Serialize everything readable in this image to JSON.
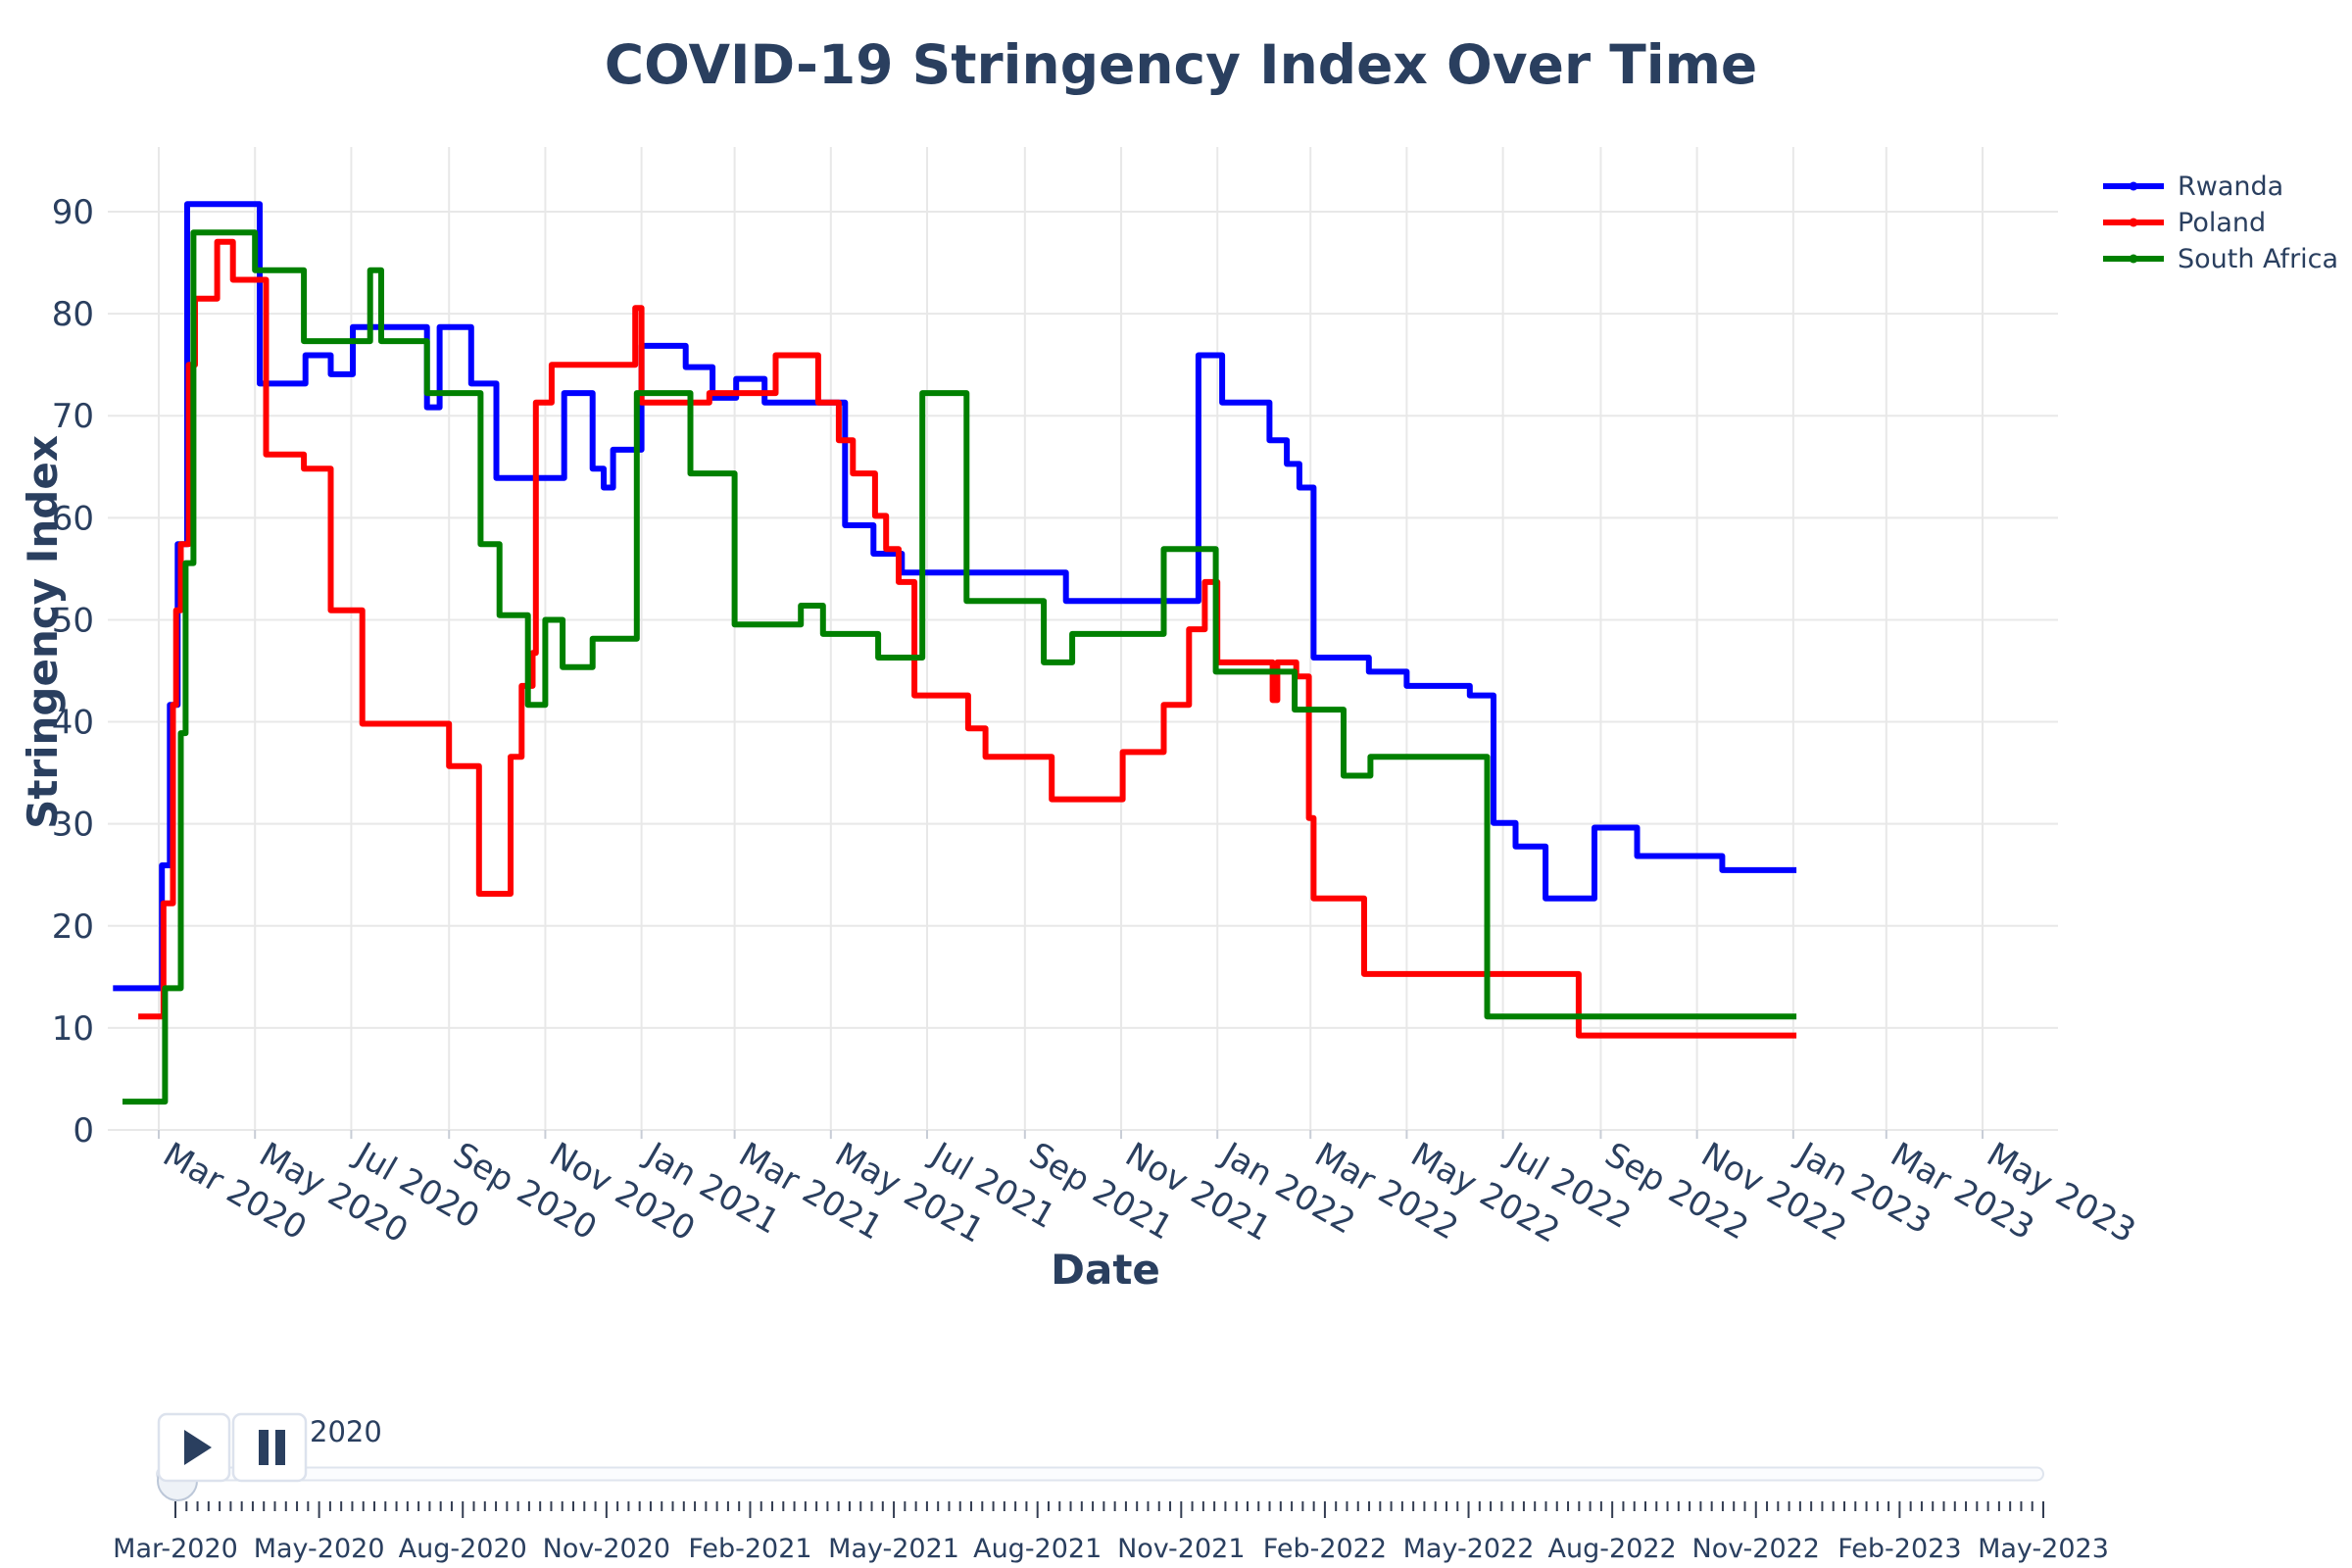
{
  "title": "COVID-19 Stringency Index Over Time",
  "axes": {
    "x_title": "Date",
    "y_title": "Stringency Index",
    "y_ticks": [
      0,
      10,
      20,
      30,
      40,
      50,
      60,
      70,
      80,
      90
    ],
    "x_ticks": [
      {
        "date": "2020-03-01",
        "label": "Mar 2020"
      },
      {
        "date": "2020-05-01",
        "label": "May 2020"
      },
      {
        "date": "2020-07-01",
        "label": "Jul 2020"
      },
      {
        "date": "2020-09-01",
        "label": "Sep 2020"
      },
      {
        "date": "2020-11-01",
        "label": "Nov 2020"
      },
      {
        "date": "2021-01-01",
        "label": "Jan 2021"
      },
      {
        "date": "2021-03-01",
        "label": "Mar 2021"
      },
      {
        "date": "2021-05-01",
        "label": "May 2021"
      },
      {
        "date": "2021-07-01",
        "label": "Jul 2021"
      },
      {
        "date": "2021-09-01",
        "label": "Sep 2021"
      },
      {
        "date": "2021-11-01",
        "label": "Nov 2021"
      },
      {
        "date": "2022-01-01",
        "label": "Jan 2022"
      },
      {
        "date": "2022-03-01",
        "label": "Mar 2022"
      },
      {
        "date": "2022-05-01",
        "label": "May 2022"
      },
      {
        "date": "2022-07-01",
        "label": "Jul 2022"
      },
      {
        "date": "2022-09-01",
        "label": "Sep 2022"
      },
      {
        "date": "2022-11-01",
        "label": "Nov 2022"
      },
      {
        "date": "2023-01-01",
        "label": "Jan 2023"
      },
      {
        "date": "2023-03-01",
        "label": "Mar 2023"
      },
      {
        "date": "2023-05-01",
        "label": "May 2023"
      }
    ]
  },
  "legend": {
    "items": [
      {
        "label": "Rwanda",
        "color": "#0000FF"
      },
      {
        "label": "Poland",
        "color": "#FF0000"
      },
      {
        "label": "South Africa",
        "color": "#008000"
      }
    ]
  },
  "controls": {
    "play_icon": "play-triangle",
    "pause_icon": "pause-bars",
    "year_label": "2020",
    "slider_tick_labels": [
      "Mar-2020",
      "May-2020",
      "Aug-2020",
      "Nov-2020",
      "Feb-2021",
      "May-2021",
      "Aug-2021",
      "Nov-2021",
      "Feb-2022",
      "May-2022",
      "Aug-2022",
      "Nov-2022",
      "Feb-2023",
      "May-2023"
    ]
  },
  "chart_data": {
    "type": "line",
    "line_shape": "step-after",
    "title": "COVID-19 Stringency Index Over Time",
    "xlabel": "Date",
    "ylabel": "Stringency Index",
    "ylim": [
      0,
      96.3
    ],
    "x_range": [
      "2020-01-27",
      "2023-06-18"
    ],
    "grid": true,
    "legend_position": "top-right",
    "series": [
      {
        "name": "Rwanda",
        "color": "#0000FF",
        "points": [
          [
            "2020-02-01",
            13.89
          ],
          [
            "2020-03-03",
            25.93
          ],
          [
            "2020-03-08",
            41.67
          ],
          [
            "2020-03-13",
            57.41
          ],
          [
            "2020-03-19",
            90.74
          ],
          [
            "2020-05-04",
            73.15
          ],
          [
            "2020-06-02",
            75.93
          ],
          [
            "2020-06-18",
            74.07
          ],
          [
            "2020-07-02",
            78.7
          ],
          [
            "2020-08-18",
            70.83
          ],
          [
            "2020-08-26",
            78.7
          ],
          [
            "2020-09-15",
            73.15
          ],
          [
            "2020-10-01",
            63.89
          ],
          [
            "2020-11-13",
            72.22
          ],
          [
            "2020-12-01",
            64.81
          ],
          [
            "2020-12-08",
            62.96
          ],
          [
            "2020-12-14",
            66.67
          ],
          [
            "2021-01-01",
            76.85
          ],
          [
            "2021-01-29",
            74.77
          ],
          [
            "2021-02-15",
            71.76
          ],
          [
            "2021-03-02",
            73.61
          ],
          [
            "2021-03-20",
            71.3
          ],
          [
            "2021-05-10",
            59.26
          ],
          [
            "2021-05-28",
            56.48
          ],
          [
            "2021-06-15",
            54.63
          ],
          [
            "2021-09-27",
            51.85
          ],
          [
            "2021-12-20",
            75.93
          ],
          [
            "2022-01-04",
            71.3
          ],
          [
            "2022-02-03",
            67.59
          ],
          [
            "2022-02-14",
            65.28
          ],
          [
            "2022-02-22",
            62.96
          ],
          [
            "2022-03-03",
            46.3
          ],
          [
            "2022-04-07",
            44.91
          ],
          [
            "2022-05-01",
            43.52
          ],
          [
            "2022-06-10",
            42.59
          ],
          [
            "2022-06-25",
            30.09
          ],
          [
            "2022-07-09",
            27.78
          ],
          [
            "2022-07-28",
            22.69
          ],
          [
            "2022-08-28",
            29.63
          ],
          [
            "2022-09-24",
            26.85
          ],
          [
            "2022-11-17",
            25.46
          ],
          [
            "2023-01-03",
            25.46
          ]
        ]
      },
      {
        "name": "Poland",
        "color": "#FF0000",
        "points": [
          [
            "2020-02-17",
            11.11
          ],
          [
            "2020-03-04",
            22.22
          ],
          [
            "2020-03-10",
            41.67
          ],
          [
            "2020-03-12",
            50.93
          ],
          [
            "2020-03-15",
            57.41
          ],
          [
            "2020-03-20",
            75.0
          ],
          [
            "2020-03-24",
            81.48
          ],
          [
            "2020-04-07",
            87.04
          ],
          [
            "2020-04-17",
            83.33
          ],
          [
            "2020-05-08",
            66.2
          ],
          [
            "2020-06-01",
            64.81
          ],
          [
            "2020-06-18",
            50.93
          ],
          [
            "2020-07-08",
            39.81
          ],
          [
            "2020-09-01",
            35.65
          ],
          [
            "2020-09-20",
            23.15
          ],
          [
            "2020-10-10",
            36.57
          ],
          [
            "2020-10-17",
            43.52
          ],
          [
            "2020-10-24",
            46.76
          ],
          [
            "2020-10-26",
            71.3
          ],
          [
            "2020-11-05",
            75.0
          ],
          [
            "2020-12-28",
            80.56
          ],
          [
            "2021-01-01",
            71.3
          ],
          [
            "2021-02-13",
            72.22
          ],
          [
            "2021-03-27",
            75.93
          ],
          [
            "2021-04-23",
            71.3
          ],
          [
            "2021-05-06",
            67.59
          ],
          [
            "2021-05-15",
            64.35
          ],
          [
            "2021-05-29",
            60.19
          ],
          [
            "2021-06-05",
            56.94
          ],
          [
            "2021-06-13",
            53.7
          ],
          [
            "2021-06-23",
            42.59
          ],
          [
            "2021-07-27",
            39.35
          ],
          [
            "2021-08-07",
            36.57
          ],
          [
            "2021-09-18",
            32.41
          ],
          [
            "2021-11-02",
            37.04
          ],
          [
            "2021-11-28",
            41.67
          ],
          [
            "2021-12-14",
            49.07
          ],
          [
            "2021-12-24",
            53.7
          ],
          [
            "2022-01-01",
            45.83
          ],
          [
            "2022-02-05",
            42.13
          ],
          [
            "2022-02-08",
            45.83
          ],
          [
            "2022-02-20",
            44.44
          ],
          [
            "2022-02-28",
            30.56
          ],
          [
            "2022-03-03",
            22.69
          ],
          [
            "2022-04-04",
            15.28
          ],
          [
            "2022-08-18",
            9.26
          ],
          [
            "2023-01-03",
            9.26
          ]
        ]
      },
      {
        "name": "South Africa",
        "color": "#008000",
        "points": [
          [
            "2020-02-07",
            2.78
          ],
          [
            "2020-03-05",
            13.89
          ],
          [
            "2020-03-15",
            38.89
          ],
          [
            "2020-03-18",
            55.56
          ],
          [
            "2020-03-23",
            87.96
          ],
          [
            "2020-05-01",
            84.26
          ],
          [
            "2020-06-01",
            77.31
          ],
          [
            "2020-07-13",
            84.26
          ],
          [
            "2020-07-20",
            77.31
          ],
          [
            "2020-08-18",
            72.22
          ],
          [
            "2020-09-21",
            57.41
          ],
          [
            "2020-10-03",
            50.46
          ],
          [
            "2020-10-21",
            41.67
          ],
          [
            "2020-11-01",
            50.0
          ],
          [
            "2020-11-12",
            45.37
          ],
          [
            "2020-12-01",
            48.15
          ],
          [
            "2020-12-29",
            72.22
          ],
          [
            "2021-02-01",
            64.35
          ],
          [
            "2021-03-01",
            49.54
          ],
          [
            "2021-04-12",
            51.39
          ],
          [
            "2021-04-26",
            48.61
          ],
          [
            "2021-05-31",
            46.3
          ],
          [
            "2021-06-28",
            72.22
          ],
          [
            "2021-07-26",
            51.85
          ],
          [
            "2021-09-13",
            45.83
          ],
          [
            "2021-10-01",
            48.61
          ],
          [
            "2021-11-28",
            56.94
          ],
          [
            "2021-12-31",
            44.91
          ],
          [
            "2022-02-19",
            41.2
          ],
          [
            "2022-03-22",
            34.72
          ],
          [
            "2022-04-08",
            36.57
          ],
          [
            "2022-06-21",
            11.11
          ],
          [
            "2023-01-03",
            11.11
          ]
        ]
      }
    ]
  }
}
